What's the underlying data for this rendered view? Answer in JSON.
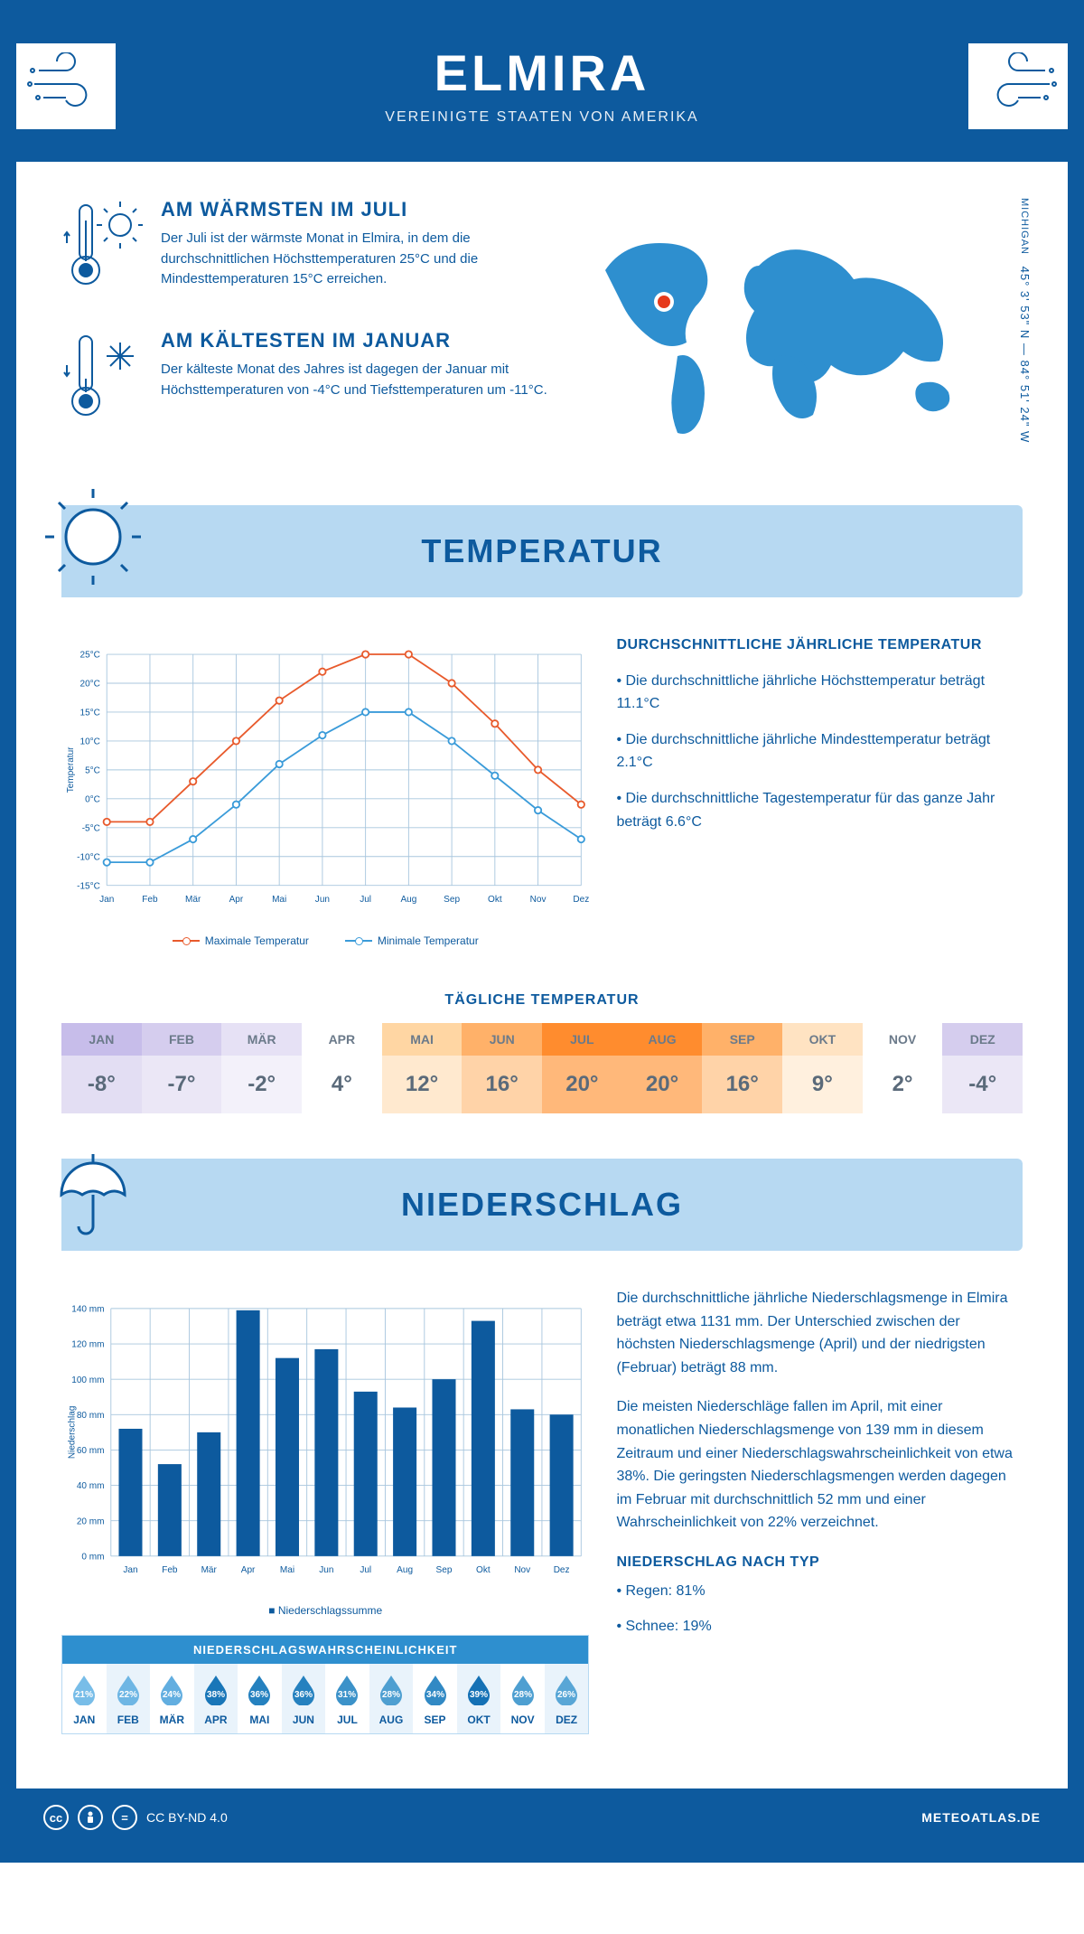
{
  "header": {
    "title": "ELMIRA",
    "subtitle": "VEREINIGTE STAATEN VON AMERIKA"
  },
  "coords": {
    "region": "MICHIGAN",
    "lat": "45° 3' 53\" N",
    "sep": "—",
    "lon": "84° 51' 24\" W"
  },
  "facts": {
    "warm": {
      "title": "AM WÄRMSTEN IM JULI",
      "text": "Der Juli ist der wärmste Monat in Elmira, in dem die durchschnittlichen Höchsttemperaturen 25°C und die Mindesttemperaturen 15°C erreichen."
    },
    "cold": {
      "title": "AM KÄLTESTEN IM JANUAR",
      "text": "Der kälteste Monat des Jahres ist dagegen der Januar mit Höchsttemperaturen von -4°C und Tiefsttemperaturen um -11°C."
    }
  },
  "sections": {
    "temperature": "TEMPERATUR",
    "precipitation": "NIEDERSCHLAG"
  },
  "months": [
    "Jan",
    "Feb",
    "Mär",
    "Apr",
    "Mai",
    "Jun",
    "Jul",
    "Aug",
    "Sep",
    "Okt",
    "Nov",
    "Dez"
  ],
  "months_upper": [
    "JAN",
    "FEB",
    "MÄR",
    "APR",
    "MAI",
    "JUN",
    "JUL",
    "AUG",
    "SEP",
    "OKT",
    "NOV",
    "DEZ"
  ],
  "temp_chart": {
    "type": "line",
    "yticks": [
      -15,
      -10,
      -5,
      0,
      5,
      10,
      15,
      20,
      25
    ],
    "ylabel": "Temperatur",
    "max": {
      "values": [
        -4,
        -4,
        3,
        10,
        17,
        22,
        25,
        25,
        20,
        13,
        5,
        -1
      ],
      "color": "#e85a2c",
      "label": "Maximale Temperatur"
    },
    "min": {
      "values": [
        -11,
        -11,
        -7,
        -1,
        6,
        11,
        15,
        15,
        10,
        4,
        -2,
        -7
      ],
      "color": "#3a9bd9",
      "label": "Minimale Temperatur"
    },
    "grid_color": "#a8c6de",
    "bg": "#ffffff",
    "line_width": 2
  },
  "avg_temp": {
    "title": "DURCHSCHNITTLICHE JÄHRLICHE TEMPERATUR",
    "items": [
      "Die durchschnittliche jährliche Höchsttemperatur beträgt 11.1°C",
      "Die durchschnittliche jährliche Mindesttemperatur beträgt 2.1°C",
      "Die durchschnittliche Tagestemperatur für das ganze Jahr beträgt 6.6°C"
    ]
  },
  "daily_temp": {
    "title": "TÄGLICHE TEMPERATUR",
    "values": [
      "-8°",
      "-7°",
      "-2°",
      "4°",
      "12°",
      "16°",
      "20°",
      "20°",
      "16°",
      "9°",
      "2°",
      "-4°"
    ],
    "head_bg": [
      "#c7bdea",
      "#d5cdee",
      "#e6e1f5",
      "#ffffff",
      "#ffd6a3",
      "#ffb169",
      "#ff8c2e",
      "#ff8c2e",
      "#ffb169",
      "#ffe3c2",
      "#ffffff",
      "#d5cdee"
    ],
    "val_bg": [
      "#e3def3",
      "#ebe7f6",
      "#f3f1fa",
      "#ffffff",
      "#ffe9cf",
      "#ffd3a8",
      "#ffb87a",
      "#ffb87a",
      "#ffd3a8",
      "#fff0de",
      "#ffffff",
      "#ebe7f6"
    ]
  },
  "precip_chart": {
    "type": "bar",
    "ylabel": "Niederschlag",
    "yticks": [
      0,
      20,
      40,
      60,
      80,
      100,
      120,
      140
    ],
    "values": [
      72,
      52,
      70,
      139,
      112,
      117,
      93,
      84,
      100,
      133,
      83,
      80
    ],
    "bar_color": "#0d5a9e",
    "grid_color": "#a8c6de",
    "legend": "Niederschlagssumme"
  },
  "precip_text": {
    "p1": "Die durchschnittliche jährliche Niederschlagsmenge in Elmira beträgt etwa 1131 mm. Der Unterschied zwischen der höchsten Niederschlagsmenge (April) und der niedrigsten (Februar) beträgt 88 mm.",
    "p2": "Die meisten Niederschläge fallen im April, mit einer monatlichen Niederschlagsmenge von 139 mm in diesem Zeitraum und einer Niederschlagswahrscheinlichkeit von etwa 38%. Die geringsten Niederschlagsmengen werden dagegen im Februar mit durchschnittlich 52 mm und einer Wahrscheinlichkeit von 22% verzeichnet."
  },
  "precip_prob": {
    "title": "NIEDERSCHLAGSWAHRSCHEINLICHKEIT",
    "values": [
      "21%",
      "22%",
      "24%",
      "38%",
      "36%",
      "36%",
      "31%",
      "28%",
      "34%",
      "39%",
      "28%",
      "26%"
    ],
    "colors": [
      "#78bde8",
      "#6eb6e4",
      "#62aee0",
      "#1976b8",
      "#2581bf",
      "#2581bf",
      "#3c92c9",
      "#4e9fd1",
      "#3189c4",
      "#1571b5",
      "#4e9fd1",
      "#58a6d6"
    ]
  },
  "precip_type": {
    "title": "NIEDERSCHLAG NACH TYP",
    "items": [
      "Regen: 81%",
      "Schnee: 19%"
    ]
  },
  "footer": {
    "license": "CC BY-ND 4.0",
    "site": "METEOATLAS.DE"
  },
  "colors": {
    "primary": "#0d5a9e",
    "banner_bg": "#b7d9f2"
  }
}
